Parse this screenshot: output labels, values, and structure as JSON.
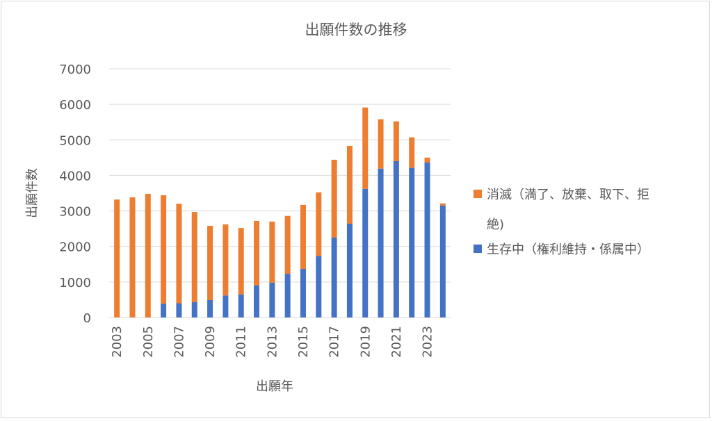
{
  "chart_data": {
    "type": "bar",
    "stacked": true,
    "title": "出願件数の推移",
    "xlabel": "出願年",
    "ylabel": "出願件数",
    "ylim": [
      0,
      7000
    ],
    "yticks": [
      0,
      1000,
      2000,
      3000,
      4000,
      5000,
      6000,
      7000
    ],
    "grid": true,
    "legend_position": "right",
    "categories": [
      2003,
      2004,
      2005,
      2006,
      2007,
      2008,
      2009,
      2010,
      2011,
      2012,
      2013,
      2014,
      2015,
      2016,
      2017,
      2018,
      2019,
      2020,
      2021,
      2022,
      2023,
      2024
    ],
    "xtick_labels": [
      "2003",
      "2005",
      "2007",
      "2009",
      "2011",
      "2013",
      "2015",
      "2017",
      "2019",
      "2021",
      "2023"
    ],
    "series": [
      {
        "name": "生存中（権利維持・係属中）",
        "color": "#4472c4",
        "values": [
          0,
          0,
          0,
          390,
          400,
          430,
          490,
          620,
          650,
          900,
          980,
          1230,
          1370,
          1730,
          2250,
          2640,
          3620,
          4190,
          4400,
          4210,
          4360,
          3150
        ]
      },
      {
        "name": "消滅（満了、放棄、取下、拒絶)",
        "color": "#ed7d31",
        "values": [
          3320,
          3380,
          3480,
          3050,
          2800,
          2540,
          2090,
          2000,
          1870,
          1820,
          1720,
          1630,
          1800,
          1790,
          2190,
          2190,
          2290,
          1390,
          1120,
          860,
          140,
          60
        ]
      }
    ],
    "legend": [
      {
        "line1": "消滅（満了、放棄、取下、拒",
        "line2": "絶)",
        "color": "#ed7d31"
      },
      {
        "line1": "生存中（権利維持・係属中）",
        "color": "#4472c4"
      }
    ]
  }
}
